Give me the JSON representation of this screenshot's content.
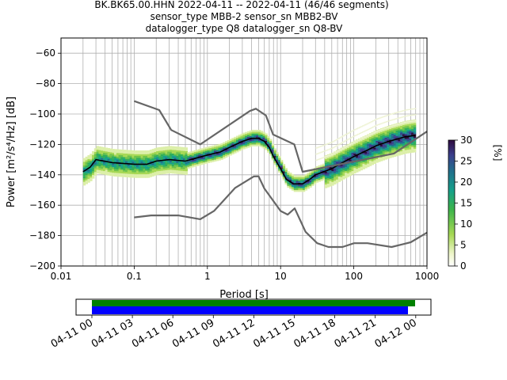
{
  "title_lines": [
    "BK.BK65.00.HHN   2022-04-11 -- 2022-04-11  (46/46 segments)",
    "sensor_type MBB-2 sensor_sn MBB2-BV",
    "datalogger_type Q8 datalogger_sn Q8-BV"
  ],
  "colorbar": {
    "label": "[%]",
    "ticks": [
      "0",
      "5",
      "10",
      "15",
      "20",
      "25",
      "30"
    ],
    "range": [
      0,
      30
    ],
    "colormap": "cmap"
  },
  "timeline": {
    "ticks": [
      "04-11 00",
      "04-11 03",
      "04-11 06",
      "04-11 09",
      "04-11 12",
      "04-11 15",
      "04-11 18",
      "04-11 21",
      "04-12 00"
    ],
    "coverage_color": "#008000",
    "segments_color": "#0000ff"
  },
  "chart_data": {
    "type": "heatmap",
    "xlabel": "Period [s]",
    "ylabel": "Power [m²/s⁴/Hz] [dB]",
    "xscale": "log",
    "xlim": [
      0.01,
      1000
    ],
    "ylim": [
      -200,
      -50
    ],
    "x_ticks": [
      "0.01",
      "0.1",
      "1",
      "10",
      "100",
      "1000"
    ],
    "y_ticks": [
      "−200",
      "−180",
      "−160",
      "−140",
      "−120",
      "−100",
      "−80",
      "−60"
    ],
    "grid": true,
    "series": [
      {
        "role": "mode",
        "color": "#000000",
        "points": [
          [
            0.02,
            -138
          ],
          [
            0.025,
            -135
          ],
          [
            0.03,
            -130
          ],
          [
            0.05,
            -132
          ],
          [
            0.1,
            -133
          ],
          [
            0.15,
            -133
          ],
          [
            0.2,
            -131
          ],
          [
            0.3,
            -130
          ],
          [
            0.5,
            -131
          ],
          [
            0.7,
            -129
          ],
          [
            1,
            -127
          ],
          [
            1.5,
            -125
          ],
          [
            2,
            -122
          ],
          [
            3,
            -118
          ],
          [
            4,
            -116
          ],
          [
            5,
            -116
          ],
          [
            6,
            -118
          ],
          [
            7,
            -122
          ],
          [
            8,
            -128
          ],
          [
            10,
            -136
          ],
          [
            12,
            -143
          ],
          [
            15,
            -146
          ],
          [
            20,
            -146
          ],
          [
            25,
            -143
          ],
          [
            30,
            -140
          ],
          [
            50,
            -136
          ],
          [
            70,
            -132
          ],
          [
            100,
            -128
          ],
          [
            150,
            -124
          ],
          [
            200,
            -121
          ],
          [
            300,
            -118
          ],
          [
            500,
            -115
          ],
          [
            700,
            -114
          ]
        ]
      },
      {
        "role": "noise_model_high",
        "color": "#666666",
        "points": [
          [
            0.1,
            -91.5
          ],
          [
            0.22,
            -97.4
          ],
          [
            0.32,
            -110.5
          ],
          [
            0.8,
            -120
          ],
          [
            3.8,
            -98
          ],
          [
            4.6,
            -96.5
          ],
          [
            6.3,
            -101
          ],
          [
            7.9,
            -113.5
          ],
          [
            15.4,
            -120
          ],
          [
            20,
            -138
          ],
          [
            354,
            -126
          ],
          [
            1000,
            -111.5
          ]
        ]
      },
      {
        "role": "noise_model_low",
        "color": "#666666",
        "points": [
          [
            0.1,
            -168
          ],
          [
            0.17,
            -166.7
          ],
          [
            0.4,
            -166.7
          ],
          [
            0.8,
            -169.2
          ],
          [
            1.24,
            -163.7
          ],
          [
            2.4,
            -148.6
          ],
          [
            4.3,
            -141.1
          ],
          [
            5,
            -141
          ],
          [
            6,
            -149
          ],
          [
            10,
            -163.8
          ],
          [
            12.5,
            -166.2
          ],
          [
            15.6,
            -162.1
          ],
          [
            21.9,
            -177.5
          ],
          [
            31.6,
            -185
          ],
          [
            45,
            -187.5
          ],
          [
            70,
            -187.5
          ],
          [
            101,
            -185
          ],
          [
            154,
            -185
          ],
          [
            328,
            -187.5
          ],
          [
            600,
            -184.4
          ],
          [
            1000,
            -178
          ]
        ]
      }
    ],
    "heatmap_color_range": [
      0,
      30
    ]
  }
}
